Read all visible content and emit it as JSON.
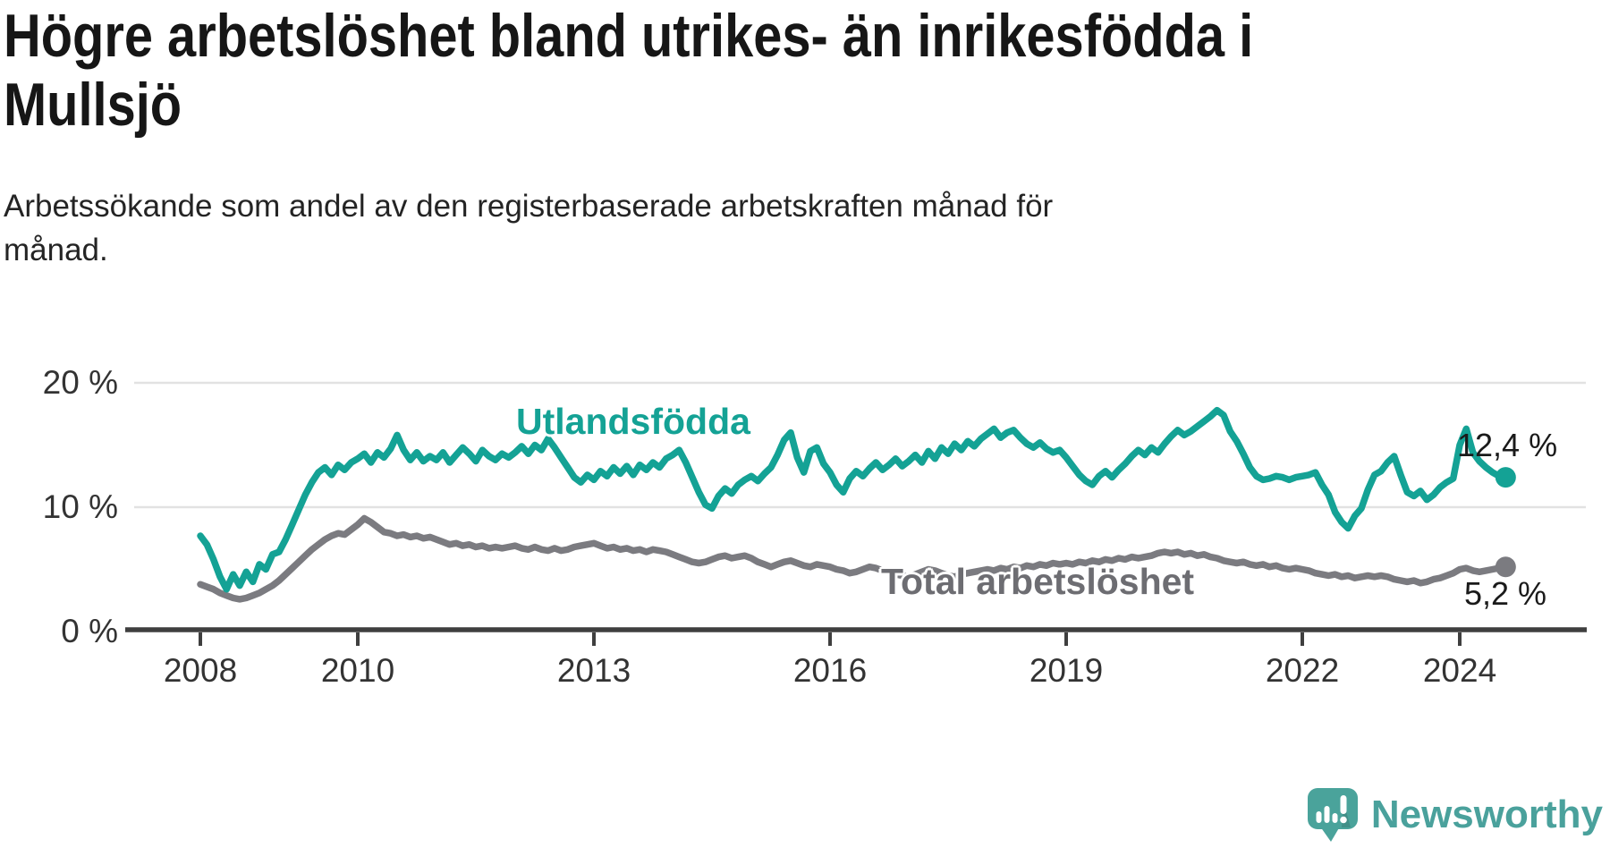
{
  "header": {
    "title_lines": [
      "Högre arbetslöshet bland utrikes- än inrikesfödda i",
      "Mullsjö"
    ],
    "subtitle_lines": [
      "Arbetssökande som andel av den registerbaserade arbetskraften månad för",
      "månad."
    ]
  },
  "chart_data": {
    "type": "line",
    "title": "Högre arbetslöshet bland utrikes- än inrikesfödda i Mullsjö",
    "subtitle": "Arbetssökande som andel av den registerbaserade arbetskraften månad för månad.",
    "x_unit": "month",
    "x_range": [
      "2008-01",
      "2024-08"
    ],
    "ylim": [
      0,
      21.5
    ],
    "grid": "horizontal",
    "grid_color": "#e2e2e2",
    "axis_color": "#3f3f3f",
    "tick_text_color": "#333333",
    "xticks": [
      {
        "label": "2008",
        "year": 2008
      },
      {
        "label": "2010",
        "year": 2010
      },
      {
        "label": "2013",
        "year": 2013
      },
      {
        "label": "2016",
        "year": 2016
      },
      {
        "label": "2019",
        "year": 2019
      },
      {
        "label": "2022",
        "year": 2022
      },
      {
        "label": "2024",
        "year": 2024
      }
    ],
    "yticks": [
      {
        "label": "20 %",
        "value": 20
      },
      {
        "label": "10 %",
        "value": 10
      },
      {
        "label": "0 %",
        "value": 0
      }
    ],
    "series": [
      {
        "name": "Utlandsfödda",
        "color": "#14a295",
        "label_color": "#14a295",
        "end_label": "12,4 %",
        "end_value": 12.4,
        "values": [
          7.7,
          7.0,
          5.8,
          4.4,
          3.4,
          4.6,
          3.7,
          4.8,
          4.0,
          5.4,
          5.0,
          6.2,
          6.4,
          7.4,
          8.6,
          9.8,
          11.0,
          12.0,
          12.8,
          13.2,
          12.6,
          13.4,
          13.0,
          13.6,
          13.9,
          14.3,
          13.6,
          14.4,
          14.0,
          14.7,
          15.8,
          14.6,
          13.8,
          14.4,
          13.7,
          14.1,
          13.8,
          14.4,
          13.6,
          14.2,
          14.8,
          14.3,
          13.7,
          14.6,
          14.1,
          13.8,
          14.3,
          14.0,
          14.4,
          14.9,
          14.3,
          15.0,
          14.6,
          15.5,
          14.8,
          14.0,
          13.2,
          12.4,
          12.0,
          12.6,
          12.2,
          12.9,
          12.5,
          13.2,
          12.7,
          13.3,
          12.6,
          13.4,
          13.0,
          13.6,
          13.2,
          13.9,
          14.2,
          14.6,
          13.6,
          12.4,
          11.2,
          10.2,
          9.9,
          10.9,
          11.5,
          11.1,
          11.8,
          12.2,
          12.5,
          12.1,
          12.7,
          13.2,
          14.2,
          15.4,
          16.0,
          14.0,
          12.8,
          14.5,
          14.8,
          13.5,
          12.8,
          11.8,
          11.2,
          12.3,
          12.9,
          12.5,
          13.1,
          13.6,
          13.0,
          13.4,
          13.9,
          13.3,
          13.7,
          14.2,
          13.6,
          14.5,
          13.9,
          14.8,
          14.3,
          15.1,
          14.6,
          15.3,
          14.9,
          15.5,
          15.9,
          16.3,
          15.6,
          16.0,
          16.2,
          15.6,
          15.1,
          14.8,
          15.2,
          14.7,
          14.4,
          14.6,
          14.0,
          13.3,
          12.6,
          12.1,
          11.8,
          12.5,
          12.9,
          12.4,
          13.0,
          13.5,
          14.1,
          14.6,
          14.2,
          14.8,
          14.4,
          15.1,
          15.7,
          16.2,
          15.8,
          16.1,
          16.5,
          16.9,
          17.3,
          17.8,
          17.4,
          16.1,
          15.3,
          14.3,
          13.2,
          12.5,
          12.2,
          12.3,
          12.5,
          12.4,
          12.2,
          12.4,
          12.5,
          12.6,
          12.8,
          11.8,
          11.0,
          9.6,
          8.8,
          8.3,
          9.3,
          9.9,
          11.4,
          12.6,
          12.9,
          13.6,
          14.1,
          12.6,
          11.2,
          10.9,
          11.3,
          10.6,
          11.0,
          11.6,
          12.0,
          12.3,
          15.0,
          16.3,
          14.4,
          13.7,
          13.2,
          12.8,
          12.5,
          12.4
        ]
      },
      {
        "name": "Total arbetslöshet",
        "color": "#7b7b80",
        "label_color": "#6d6d72",
        "end_label": "5,2 %",
        "end_value": 5.2,
        "values": [
          3.8,
          3.6,
          3.4,
          3.1,
          2.9,
          2.7,
          2.6,
          2.7,
          2.9,
          3.1,
          3.4,
          3.7,
          4.1,
          4.6,
          5.1,
          5.6,
          6.1,
          6.6,
          7.0,
          7.4,
          7.7,
          7.9,
          7.8,
          8.2,
          8.6,
          9.1,
          8.8,
          8.4,
          8.0,
          7.9,
          7.7,
          7.8,
          7.6,
          7.7,
          7.5,
          7.6,
          7.4,
          7.2,
          7.0,
          7.1,
          6.9,
          7.0,
          6.8,
          6.9,
          6.7,
          6.8,
          6.7,
          6.8,
          6.9,
          6.7,
          6.6,
          6.8,
          6.6,
          6.5,
          6.7,
          6.5,
          6.6,
          6.8,
          6.9,
          7.0,
          7.1,
          6.9,
          6.7,
          6.8,
          6.6,
          6.7,
          6.5,
          6.6,
          6.4,
          6.6,
          6.5,
          6.4,
          6.2,
          6.0,
          5.8,
          5.6,
          5.5,
          5.6,
          5.8,
          6.0,
          6.1,
          5.9,
          6.0,
          6.1,
          5.9,
          5.6,
          5.4,
          5.2,
          5.4,
          5.6,
          5.7,
          5.5,
          5.3,
          5.2,
          5.4,
          5.3,
          5.2,
          5.0,
          4.9,
          4.7,
          4.8,
          5.0,
          5.2,
          5.1,
          4.9,
          4.8,
          4.6,
          4.5,
          4.4,
          4.6,
          4.8,
          5.0,
          4.9,
          4.7,
          4.5,
          4.4,
          4.6,
          4.7,
          4.8,
          4.9,
          5.0,
          4.9,
          5.1,
          5.0,
          5.2,
          5.1,
          5.3,
          5.2,
          5.4,
          5.3,
          5.5,
          5.4,
          5.5,
          5.4,
          5.6,
          5.5,
          5.7,
          5.6,
          5.8,
          5.7,
          5.9,
          5.8,
          6.0,
          5.9,
          6.0,
          6.1,
          6.3,
          6.4,
          6.3,
          6.4,
          6.2,
          6.3,
          6.1,
          6.2,
          6.0,
          5.9,
          5.7,
          5.6,
          5.5,
          5.6,
          5.4,
          5.3,
          5.4,
          5.2,
          5.3,
          5.1,
          5.0,
          5.1,
          5.0,
          4.9,
          4.7,
          4.6,
          4.5,
          4.6,
          4.4,
          4.5,
          4.3,
          4.4,
          4.5,
          4.4,
          4.5,
          4.4,
          4.2,
          4.1,
          4.0,
          4.1,
          3.9,
          4.0,
          4.2,
          4.3,
          4.5,
          4.7,
          5.0,
          5.1,
          4.9,
          4.8,
          4.9,
          5.0,
          5.1,
          5.2
        ]
      }
    ]
  },
  "footer": {
    "brand": "Newsworthy",
    "brand_color": "#4aa19c",
    "logo_icon": "newsworthy-speech-bubble-bar-chart-icon"
  }
}
